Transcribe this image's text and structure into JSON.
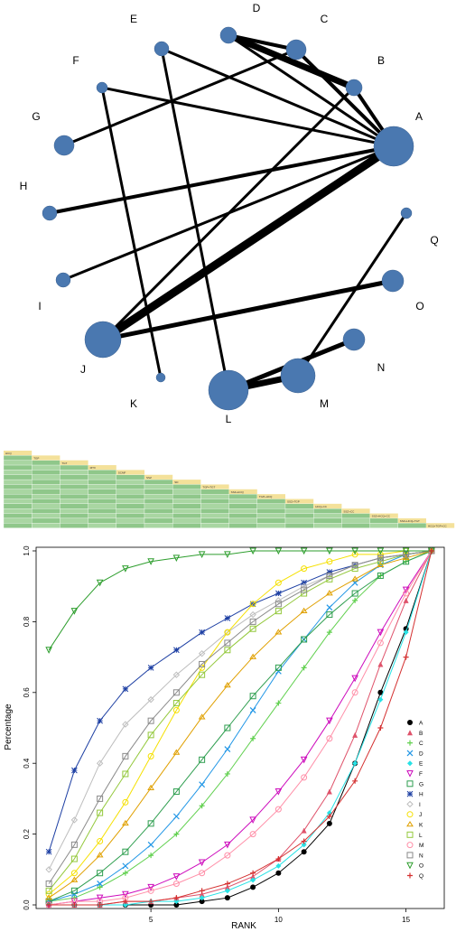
{
  "chart_data": [
    {
      "type": "network",
      "nodes": [
        {
          "label": "A",
          "size": 22
        },
        {
          "label": "B",
          "size": 9
        },
        {
          "label": "C",
          "size": 11
        },
        {
          "label": "D",
          "size": 9
        },
        {
          "label": "E",
          "size": 8
        },
        {
          "label": "F",
          "size": 6
        },
        {
          "label": "G",
          "size": 11
        },
        {
          "label": "H",
          "size": 8
        },
        {
          "label": "I",
          "size": 8
        },
        {
          "label": "J",
          "size": 20
        },
        {
          "label": "K",
          "size": 5
        },
        {
          "label": "L",
          "size": 22
        },
        {
          "label": "M",
          "size": 19
        },
        {
          "label": "N",
          "size": 12
        },
        {
          "label": "O",
          "size": 12
        },
        {
          "label": "Q",
          "size": 6
        }
      ],
      "edges": [
        {
          "from": "A",
          "to": "B",
          "weight": 4
        },
        {
          "from": "A",
          "to": "C",
          "weight": 4
        },
        {
          "from": "A",
          "to": "D",
          "weight": 3
        },
        {
          "from": "A",
          "to": "E",
          "weight": 3
        },
        {
          "from": "A",
          "to": "F",
          "weight": 3
        },
        {
          "from": "A",
          "to": "H",
          "weight": 4
        },
        {
          "from": "A",
          "to": "I",
          "weight": 3
        },
        {
          "from": "A",
          "to": "J",
          "weight": 9
        },
        {
          "from": "B",
          "to": "D",
          "weight": 7
        },
        {
          "from": "B",
          "to": "J",
          "weight": 3
        },
        {
          "from": "C",
          "to": "G",
          "weight": 3
        },
        {
          "from": "C",
          "to": "D",
          "weight": 4
        },
        {
          "from": "E",
          "to": "L",
          "weight": 3
        },
        {
          "from": "F",
          "to": "K",
          "weight": 3
        },
        {
          "from": "J",
          "to": "O",
          "weight": 5
        },
        {
          "from": "L",
          "to": "M",
          "weight": 7
        },
        {
          "from": "L",
          "to": "N",
          "weight": 5
        },
        {
          "from": "M",
          "to": "Q",
          "weight": 3
        }
      ]
    },
    {
      "type": "table",
      "treatments": [
        "HCQ",
        "TGP",
        "TGT",
        "MTX",
        "SCMF",
        "SSZ",
        "SD",
        "TGP+TGT",
        "SSZ+HCQ",
        "TGP+HCQ",
        "SSZ+TGP",
        "HCQ+CC",
        "SSZ+CC",
        "SSZ+HCQ+CC",
        "SSZ+HCQ+TGT",
        "HCQ+TGP+CC"
      ]
    },
    {
      "type": "line",
      "xlabel": "RANK",
      "ylabel": "Percentage",
      "xlim": [
        0.5,
        16.5
      ],
      "ylim": [
        0,
        1
      ],
      "xticks": [
        5,
        10,
        15
      ],
      "yticks": [
        0.0,
        0.2,
        0.4,
        0.6,
        0.8,
        1.0
      ],
      "x": [
        1,
        2,
        3,
        4,
        5,
        6,
        7,
        8,
        9,
        10,
        11,
        12,
        13,
        14,
        15,
        16
      ],
      "series": [
        {
          "name": "A",
          "color": "#000000",
          "marker": "circle",
          "values": [
            0.0,
            0.0,
            0.0,
            0.0,
            0.0,
            0.0,
            0.01,
            0.02,
            0.05,
            0.09,
            0.15,
            0.23,
            0.4,
            0.6,
            0.78,
            1.0
          ]
        },
        {
          "name": "B",
          "color": "#df536b",
          "marker": "tri",
          "values": [
            0.0,
            0.0,
            0.0,
            0.01,
            0.01,
            0.02,
            0.03,
            0.05,
            0.08,
            0.13,
            0.21,
            0.32,
            0.48,
            0.68,
            0.86,
            1.0
          ]
        },
        {
          "name": "C",
          "color": "#61d04f",
          "marker": "plus",
          "values": [
            0.01,
            0.02,
            0.05,
            0.09,
            0.14,
            0.2,
            0.28,
            0.37,
            0.47,
            0.57,
            0.67,
            0.77,
            0.86,
            0.93,
            0.97,
            1.0
          ]
        },
        {
          "name": "D",
          "color": "#2297e6",
          "marker": "x",
          "values": [
            0.01,
            0.03,
            0.06,
            0.11,
            0.17,
            0.25,
            0.34,
            0.44,
            0.55,
            0.66,
            0.75,
            0.84,
            0.91,
            0.96,
            0.99,
            1.0
          ]
        },
        {
          "name": "E",
          "color": "#28e2e5",
          "marker": "diamond",
          "values": [
            0.0,
            0.0,
            0.0,
            0.0,
            0.01,
            0.01,
            0.02,
            0.04,
            0.07,
            0.11,
            0.17,
            0.26,
            0.4,
            0.58,
            0.77,
            1.0
          ]
        },
        {
          "name": "F",
          "color": "#cd0bbc",
          "marker": "tri-down",
          "values": [
            0.0,
            0.01,
            0.02,
            0.03,
            0.05,
            0.08,
            0.12,
            0.17,
            0.24,
            0.32,
            0.41,
            0.52,
            0.64,
            0.77,
            0.89,
            1.0
          ]
        },
        {
          "name": "G",
          "color": "#2e9e4f",
          "marker": "square-cross",
          "values": [
            0.01,
            0.04,
            0.09,
            0.15,
            0.23,
            0.32,
            0.41,
            0.5,
            0.59,
            0.67,
            0.75,
            0.82,
            0.88,
            0.93,
            0.97,
            1.0
          ]
        },
        {
          "name": "H",
          "color": "#1d3fa3",
          "marker": "star",
          "values": [
            0.15,
            0.38,
            0.52,
            0.61,
            0.67,
            0.72,
            0.77,
            0.81,
            0.85,
            0.88,
            0.91,
            0.94,
            0.96,
            0.98,
            0.99,
            1.0
          ]
        },
        {
          "name": "I",
          "color": "#bdbdbd",
          "marker": "diamond-plus",
          "values": [
            0.1,
            0.24,
            0.4,
            0.51,
            0.58,
            0.65,
            0.71,
            0.77,
            0.82,
            0.86,
            0.9,
            0.93,
            0.96,
            0.98,
            0.99,
            1.0
          ]
        },
        {
          "name": "J",
          "color": "#f5e000",
          "marker": "circle-plus",
          "values": [
            0.03,
            0.09,
            0.18,
            0.29,
            0.42,
            0.55,
            0.67,
            0.77,
            0.85,
            0.91,
            0.95,
            0.97,
            0.99,
            0.99,
            1.0,
            1.0
          ]
        },
        {
          "name": "K",
          "color": "#e0a000",
          "marker": "star-of-david",
          "values": [
            0.02,
            0.07,
            0.14,
            0.23,
            0.33,
            0.43,
            0.53,
            0.62,
            0.7,
            0.77,
            0.83,
            0.88,
            0.92,
            0.96,
            0.98,
            1.0
          ]
        },
        {
          "name": "L",
          "color": "#93c83b",
          "marker": "square-x",
          "values": [
            0.04,
            0.13,
            0.26,
            0.37,
            0.48,
            0.57,
            0.65,
            0.72,
            0.78,
            0.83,
            0.88,
            0.92,
            0.95,
            0.97,
            0.99,
            1.0
          ]
        },
        {
          "name": "M",
          "color": "#ff8fa8",
          "marker": "circle-plus",
          "values": [
            0.0,
            0.01,
            0.01,
            0.02,
            0.04,
            0.06,
            0.09,
            0.14,
            0.2,
            0.27,
            0.36,
            0.47,
            0.6,
            0.74,
            0.88,
            1.0
          ]
        },
        {
          "name": "N",
          "color": "#8a8a8a",
          "marker": "tri-square",
          "values": [
            0.06,
            0.17,
            0.3,
            0.42,
            0.52,
            0.6,
            0.68,
            0.74,
            0.8,
            0.85,
            0.89,
            0.93,
            0.96,
            0.98,
            0.99,
            1.0
          ]
        },
        {
          "name": "O",
          "color": "#2e9e2e",
          "marker": "tri-down",
          "values": [
            0.72,
            0.83,
            0.91,
            0.95,
            0.97,
            0.98,
            0.99,
            0.99,
            1.0,
            1.0,
            1.0,
            1.0,
            1.0,
            1.0,
            1.0,
            1.0
          ]
        },
        {
          "name": "Q",
          "color": "#d43030",
          "marker": "plus",
          "values": [
            0.0,
            0.0,
            0.0,
            0.01,
            0.01,
            0.02,
            0.04,
            0.06,
            0.09,
            0.13,
            0.18,
            0.25,
            0.35,
            0.5,
            0.7,
            1.0
          ]
        }
      ]
    }
  ]
}
